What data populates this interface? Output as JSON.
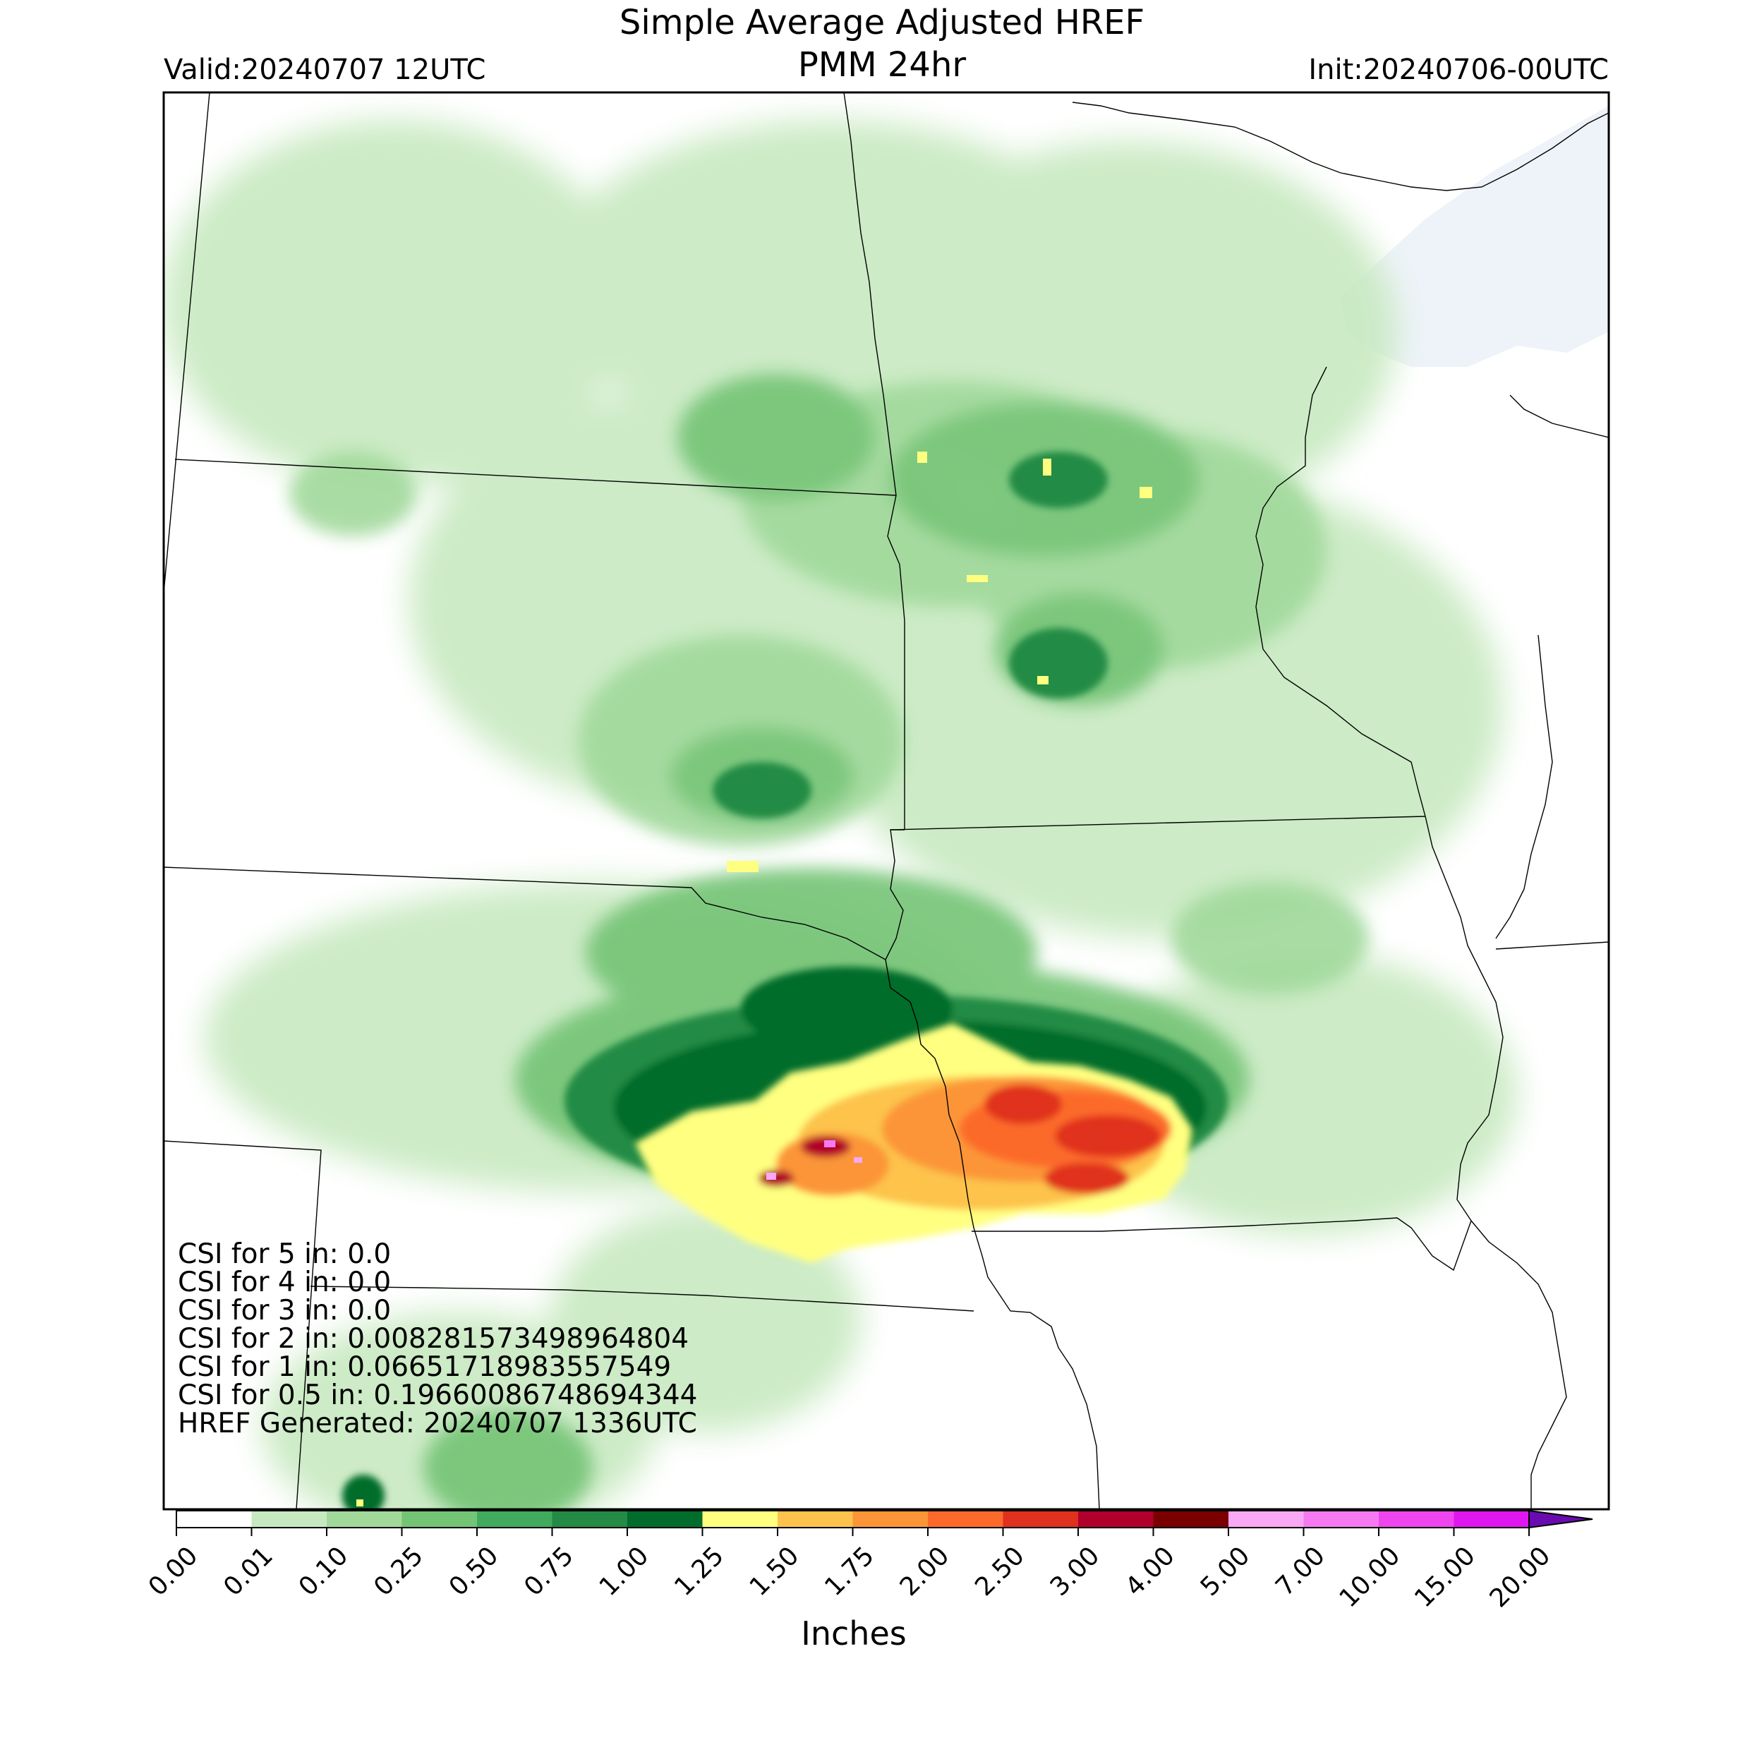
{
  "title": {
    "line1": "Simple Average Adjusted HREF",
    "line2": "PMM 24hr",
    "valid": "Valid:20240707 12UTC",
    "init": "Init:20240706-00UTC"
  },
  "stats": {
    "lines": [
      "CSI for 5 in: 0.0",
      "CSI for 4 in: 0.0",
      "CSI for 3 in: 0.0",
      "CSI for 2 in: 0.008281573498964804",
      "CSI for 1 in: 0.06651718983557549",
      "CSI for 0.5 in: 0.19660086748694344",
      "HREF Generated: 20240707 1336UTC"
    ]
  },
  "colorbar": {
    "unit_label": "Inches",
    "ticks": [
      "0.00",
      "0.01",
      "0.10",
      "0.25",
      "0.50",
      "0.75",
      "1.00",
      "1.25",
      "1.50",
      "1.75",
      "2.00",
      "2.50",
      "3.00",
      "4.00",
      "5.00",
      "7.00",
      "10.00",
      "15.00",
      "20.00"
    ],
    "colors": [
      "#ffffff",
      "#c7e9c0",
      "#a1d99b",
      "#74c476",
      "#41ab5d",
      "#238b45",
      "#006d2c",
      "#ffff80",
      "#fdc34c",
      "#fc9537",
      "#fc6a2b",
      "#e0301e",
      "#b1002b",
      "#7a0000",
      "#f8a8f5",
      "#f57af2",
      "#ef45ef",
      "#df17ee",
      "#a90fd6",
      "#6a0bb0"
    ]
  }
}
